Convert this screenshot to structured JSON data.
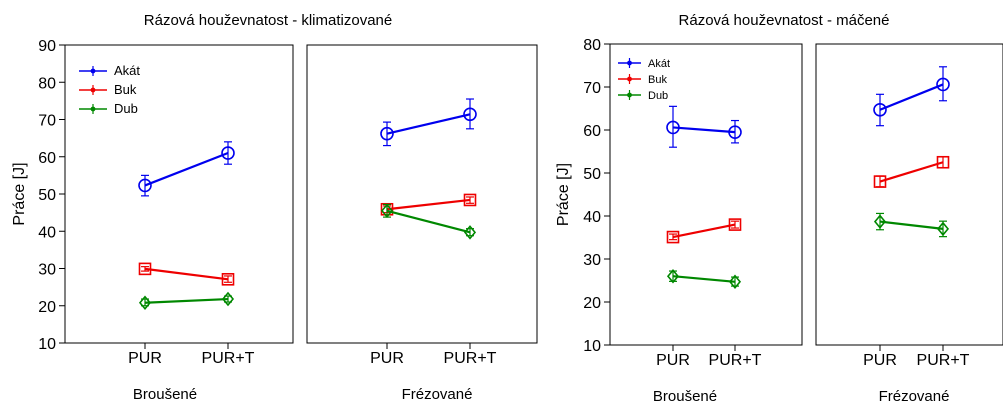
{
  "chart_data": [
    {
      "type": "line",
      "title": "Rázová houževnatost - klimatizované",
      "ylabel": "Práce [J]",
      "ylim": [
        10,
        90
      ],
      "yticks": [
        10,
        20,
        30,
        40,
        50,
        60,
        70,
        80,
        90
      ],
      "categories": [
        "PUR",
        "PUR+T"
      ],
      "grid": false,
      "legend_position": "top-left",
      "panels": [
        {
          "label": "Broušené",
          "series": [
            {
              "name": "Akát",
              "values": [
                52.3,
                61.0
              ],
              "err_low": [
                49.5,
                58.0
              ],
              "err_high": [
                55.0,
                64.0
              ]
            },
            {
              "name": "Buk",
              "values": [
                29.9,
                27.1
              ],
              "err_low": [
                29.3,
                26.3
              ],
              "err_high": [
                30.5,
                28.0
              ]
            },
            {
              "name": "Dub",
              "values": [
                20.8,
                21.8
              ],
              "err_low": [
                20.0,
                21.0
              ],
              "err_high": [
                21.8,
                22.6
              ]
            }
          ]
        },
        {
          "label": "Frézované",
          "series": [
            {
              "name": "Akát",
              "values": [
                66.2,
                71.4
              ],
              "err_low": [
                63.0,
                67.5
              ],
              "err_high": [
                69.3,
                75.5
              ]
            },
            {
              "name": "Buk",
              "values": [
                45.9,
                48.4
              ],
              "err_low": [
                45.0,
                47.5
              ],
              "err_high": [
                46.8,
                49.2
              ]
            },
            {
              "name": "Dub",
              "values": [
                45.5,
                39.7
              ],
              "err_low": [
                43.8,
                38.8
              ],
              "err_high": [
                47.2,
                40.7
              ]
            }
          ]
        }
      ]
    },
    {
      "type": "line",
      "title": "Rázová houževnatost - máčené",
      "ylabel": "Práce [J]",
      "ylim": [
        10,
        80
      ],
      "yticks": [
        10,
        20,
        30,
        40,
        50,
        60,
        70,
        80
      ],
      "categories": [
        "PUR",
        "PUR+T"
      ],
      "grid": false,
      "legend_position": "top-left",
      "panels": [
        {
          "label": "Broušené",
          "series": [
            {
              "name": "Akát",
              "values": [
                60.6,
                59.5
              ],
              "err_low": [
                56.0,
                57.0
              ],
              "err_high": [
                65.5,
                62.2
              ]
            },
            {
              "name": "Buk",
              "values": [
                35.1,
                38.0
              ],
              "err_low": [
                34.5,
                37.2
              ],
              "err_high": [
                35.8,
                38.8
              ]
            },
            {
              "name": "Dub",
              "values": [
                26.0,
                24.7
              ],
              "err_low": [
                24.8,
                23.7
              ],
              "err_high": [
                27.2,
                25.8
              ]
            }
          ]
        },
        {
          "label": "Frézované",
          "series": [
            {
              "name": "Akát",
              "values": [
                64.7,
                70.6
              ],
              "err_low": [
                61.0,
                66.8
              ],
              "err_high": [
                68.3,
                74.7
              ]
            },
            {
              "name": "Buk",
              "values": [
                48.0,
                52.5
              ],
              "err_low": [
                46.8,
                51.2
              ],
              "err_high": [
                49.3,
                53.8
              ]
            },
            {
              "name": "Dub",
              "values": [
                38.7,
                37.0
              ],
              "err_low": [
                36.8,
                35.2
              ],
              "err_high": [
                40.6,
                38.8
              ]
            }
          ]
        }
      ]
    }
  ],
  "legend": [
    {
      "name": "Akát",
      "color": "#0000ee",
      "marker": "circle"
    },
    {
      "name": "Buk",
      "color": "#ee0000",
      "marker": "square"
    },
    {
      "name": "Dub",
      "color": "#008800",
      "marker": "diamond"
    }
  ]
}
